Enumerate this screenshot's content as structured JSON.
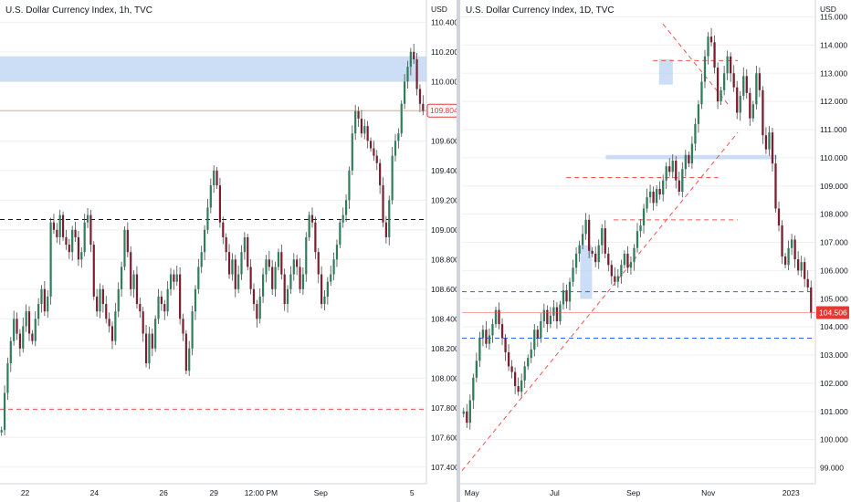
{
  "colors": {
    "up": "#2e7d5b",
    "down": "#7a1f2f",
    "wick": "#4a4a4a",
    "zone": "#b9d3f2",
    "red_dash": "#ef5350",
    "blue_dash": "#2962ff",
    "black_dash": "#131722",
    "grid": "#eef0f3",
    "price_tag_left": "#e53935",
    "price_tag_right": "#e53935"
  },
  "chart_data": [
    {
      "type": "candlestick",
      "title": "U.S. Dollar Currency Index, 1h, TVC",
      "unit_label": "USD",
      "ylim": [
        107.3,
        110.55
      ],
      "y_ticks": [
        "110.400",
        "110.200",
        "110.000",
        "109.800",
        "109.600",
        "109.400",
        "109.200",
        "109.000",
        "108.800",
        "108.600",
        "108.400",
        "108.200",
        "108.000",
        "107.800",
        "107.600",
        "107.400"
      ],
      "y_tick_values": [
        110.4,
        110.2,
        110.0,
        109.8,
        109.6,
        109.4,
        109.2,
        109.0,
        108.8,
        108.6,
        108.4,
        108.2,
        108.0,
        107.8,
        107.6,
        107.4
      ],
      "x_ticks": [
        "22",
        "24",
        "26",
        "29",
        "12:00 PM",
        "Sep",
        "5"
      ],
      "x_tick_positions": [
        8,
        30,
        52,
        68,
        83,
        102,
        131
      ],
      "current_price": "109.804",
      "current_price_value": 109.804,
      "zones": [
        {
          "y_low": 110.0,
          "y_high": 110.17
        }
      ],
      "hlines": [
        {
          "y": 109.07,
          "style": "black_dash"
        },
        {
          "y": 107.79,
          "style": "red_dash"
        }
      ],
      "closes": [
        107.65,
        107.9,
        108.1,
        108.25,
        108.4,
        108.3,
        108.2,
        108.35,
        108.45,
        108.3,
        108.25,
        108.4,
        108.5,
        108.6,
        108.45,
        108.55,
        109.05,
        109.0,
        108.95,
        109.1,
        108.95,
        108.9,
        108.85,
        109.0,
        108.95,
        108.8,
        108.85,
        109.05,
        109.1,
        108.9,
        108.55,
        108.45,
        108.6,
        108.5,
        108.4,
        108.35,
        108.25,
        108.45,
        108.6,
        108.75,
        109.0,
        108.85,
        108.6,
        108.7,
        108.5,
        108.45,
        108.3,
        108.1,
        108.3,
        108.2,
        108.4,
        108.55,
        108.5,
        108.45,
        108.6,
        108.7,
        108.65,
        108.7,
        108.4,
        108.3,
        108.05,
        108.2,
        108.45,
        108.6,
        108.75,
        108.85,
        109.0,
        109.15,
        109.3,
        109.4,
        109.3,
        109.05,
        108.95,
        108.85,
        108.7,
        108.8,
        108.6,
        108.7,
        108.85,
        108.95,
        108.75,
        108.6,
        108.5,
        108.4,
        108.55,
        108.7,
        108.8,
        108.75,
        108.6,
        108.75,
        108.85,
        108.7,
        108.5,
        108.6,
        108.7,
        108.8,
        108.75,
        108.6,
        108.7,
        108.95,
        109.1,
        109.05,
        108.85,
        108.7,
        108.5,
        108.55,
        108.65,
        108.7,
        108.8,
        108.9,
        109.05,
        109.1,
        109.2,
        109.4,
        109.65,
        109.8,
        109.75,
        109.65,
        109.7,
        109.6,
        109.55,
        109.5,
        109.45,
        109.3,
        109.05,
        108.95,
        109.2,
        109.5,
        109.6,
        109.65,
        109.85,
        110.0,
        110.1,
        110.2,
        110.15,
        109.95,
        109.85,
        109.8
      ]
    },
    {
      "type": "candlestick",
      "title": "U.S. Dollar Currency Index, 1D, TVC",
      "unit_label": "USD",
      "ylim": [
        98.5,
        115.6
      ],
      "y_ticks": [
        "115.000",
        "114.000",
        "113.000",
        "112.000",
        "111.000",
        "110.000",
        "109.000",
        "108.000",
        "107.000",
        "106.000",
        "105.000",
        "104.000",
        "103.000",
        "102.000",
        "101.000",
        "100.000",
        "99.000"
      ],
      "y_tick_values": [
        115,
        114,
        113,
        112,
        111,
        110,
        109,
        108,
        107,
        106,
        105,
        104,
        103,
        102,
        101,
        100,
        99
      ],
      "x_ticks": [
        "May",
        "Jul",
        "Sep",
        "Nov",
        "2023"
      ],
      "x_tick_positions": [
        5,
        47,
        87,
        125,
        167
      ],
      "current_price": "104.506",
      "current_price_value": 104.506,
      "zones": [
        {
          "x_start": 73,
          "x_end": 160,
          "y_low": 109.95,
          "y_high": 110.1
        },
        {
          "x_start": 100,
          "x_end": 107,
          "y_low": 112.6,
          "y_high": 113.5
        },
        {
          "x_start": 60,
          "x_end": 66,
          "y_low": 105.0,
          "y_high": 106.9
        }
      ],
      "hlines": [
        {
          "y": 105.25,
          "x_start": 0,
          "x_end": 178,
          "style": "blue_dash"
        },
        {
          "y": 103.6,
          "x_start": 0,
          "x_end": 178,
          "style": "blue_dash"
        },
        {
          "y": 113.45,
          "x_start": 97,
          "x_end": 140,
          "style": "red_dash"
        },
        {
          "y": 109.3,
          "x_start": 53,
          "x_end": 130,
          "style": "red_dash"
        },
        {
          "y": 107.8,
          "x_start": 77,
          "x_end": 140,
          "style": "red_dash"
        }
      ],
      "trendlines": [
        {
          "x1": 0,
          "y1": 98.9,
          "x2": 140,
          "y2": 110.9,
          "style": "red_dash"
        },
        {
          "x1": 102,
          "y1": 114.75,
          "x2": 135,
          "y2": 111.9,
          "style": "red_dash"
        }
      ],
      "closes": [
        101.0,
        100.6,
        101.4,
        102.2,
        102.8,
        103.6,
        103.9,
        103.4,
        103.7,
        104.1,
        104.6,
        104.1,
        103.6,
        103.1,
        102.6,
        102.4,
        101.9,
        101.7,
        102.1,
        102.6,
        102.9,
        103.2,
        103.9,
        103.6,
        104.2,
        104.6,
        104.1,
        104.4,
        104.7,
        104.2,
        104.8,
        105.3,
        104.9,
        105.6,
        106.1,
        106.6,
        106.9,
        107.3,
        107.8,
        106.7,
        106.6,
        106.3,
        106.9,
        107.5,
        106.6,
        106.2,
        105.8,
        105.6,
        105.8,
        106.2,
        106.6,
        106.1,
        106.3,
        106.8,
        107.4,
        107.6,
        108.2,
        108.6,
        108.8,
        108.4,
        108.9,
        108.7,
        109.2,
        109.7,
        109.5,
        109.9,
        109.2,
        108.8,
        109.6,
        110.1,
        109.8,
        110.5,
        111.2,
        111.9,
        112.7,
        113.6,
        114.3,
        114.1,
        113.2,
        112.0,
        112.4,
        113.0,
        113.6,
        113.0,
        112.5,
        111.6,
        112.2,
        112.9,
        112.3,
        111.4,
        111.9,
        113.0,
        112.4,
        110.8,
        110.3,
        110.9,
        109.8,
        108.2,
        107.6,
        106.5,
        106.2,
        106.8,
        107.1,
        106.4,
        106.0,
        106.3,
        105.7,
        105.4,
        104.506
      ]
    }
  ]
}
